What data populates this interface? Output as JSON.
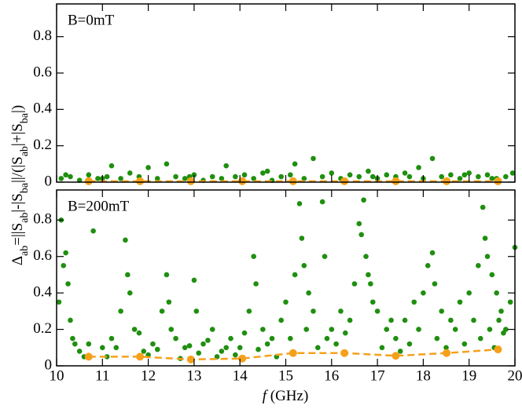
{
  "chart_data": [
    {
      "type": "scatter",
      "annotation": "B=0mT",
      "xlim": [
        10,
        20
      ],
      "xticks": [
        10,
        11,
        12,
        13,
        14,
        15,
        16,
        17,
        18,
        19,
        20
      ],
      "xtick_labels": false,
      "ylim": [
        0,
        0.98
      ],
      "yticks": [
        0,
        0.2,
        0.4,
        0.6,
        0.8
      ],
      "series": [
        {
          "color": "#1f8f0f",
          "x": [
            10.1,
            10.3,
            10.5,
            10.7,
            10.9,
            11.1,
            11.2,
            11.4,
            11.6,
            11.8,
            12.0,
            12.2,
            12.4,
            12.6,
            12.8,
            13.0,
            13.2,
            13.4,
            13.6,
            13.7,
            13.9,
            14.1,
            14.3,
            14.5,
            14.7,
            14.9,
            15.1,
            15.2,
            15.4,
            15.6,
            15.8,
            16.0,
            16.2,
            16.4,
            16.6,
            16.8,
            17.0,
            17.2,
            17.4,
            17.6,
            17.9,
            18.0,
            18.2,
            18.4,
            18.6,
            18.8,
            19.0,
            19.2,
            19.4,
            19.6,
            19.8,
            19.95,
            10.2,
            11.0,
            12.9,
            14.6,
            16.9,
            18.9,
            19.5,
            17.7
          ],
          "values": [
            0.02,
            0.03,
            0.01,
            0.04,
            0.02,
            0.03,
            0.09,
            0.02,
            0.05,
            0.03,
            0.08,
            0.02,
            0.1,
            0.03,
            0.02,
            0.04,
            0.01,
            0.03,
            0.02,
            0.09,
            0.03,
            0.04,
            0.02,
            0.05,
            0.01,
            0.03,
            0.04,
            0.1,
            0.02,
            0.13,
            0.03,
            0.05,
            0.02,
            0.04,
            0.03,
            0.06,
            0.02,
            0.04,
            0.03,
            0.05,
            0.08,
            0.02,
            0.13,
            0.03,
            0.04,
            0.02,
            0.05,
            0.03,
            0.04,
            0.02,
            0.03,
            0.05,
            0.04,
            0.02,
            0.03,
            0.06,
            0.03,
            0.04,
            0.02,
            0.03
          ]
        },
        {
          "color": "#f5a01a",
          "line": "dashed",
          "x": [
            10.7,
            11.82,
            12.93,
            14.05,
            15.16,
            16.28,
            17.4,
            18.51,
            19.63
          ],
          "values": [
            0.005,
            0.005,
            0.005,
            0.005,
            0.005,
            0.005,
            0.005,
            0.005,
            0.005
          ]
        }
      ]
    },
    {
      "type": "scatter",
      "annotation": "B=200mT",
      "xlabel_var": "f",
      "xlabel_unit": "(GHz)",
      "ylabel": [
        {
          "text": "Δ",
          "sub": false
        },
        {
          "text": "ab",
          "sub": true
        },
        {
          "text": "=||S",
          "sub": false
        },
        {
          "text": "ab",
          "sub": true
        },
        {
          "text": "|-|S",
          "sub": false
        },
        {
          "text": "ba",
          "sub": true
        },
        {
          "text": "||/(|S",
          "sub": false
        },
        {
          "text": "ab",
          "sub": true
        },
        {
          "text": "|+|S",
          "sub": false
        },
        {
          "text": "ba",
          "sub": true
        },
        {
          "text": "|)",
          "sub": false
        }
      ],
      "xlim": [
        10,
        20
      ],
      "xticks": [
        10,
        11,
        12,
        13,
        14,
        15,
        16,
        17,
        18,
        19,
        20
      ],
      "xtick_labels": true,
      "ylim": [
        0,
        0.965
      ],
      "yticks": [
        0,
        0.2,
        0.4,
        0.6,
        0.8
      ],
      "series": [
        {
          "color": "#1f8f0f",
          "x": [
            10.05,
            10.1,
            10.15,
            10.2,
            10.25,
            10.3,
            10.4,
            10.5,
            10.6,
            10.8,
            11.0,
            11.2,
            11.4,
            11.5,
            11.55,
            11.6,
            11.7,
            11.9,
            12.1,
            12.3,
            12.4,
            12.45,
            12.6,
            12.8,
            13.0,
            13.05,
            13.2,
            13.4,
            13.6,
            13.8,
            14.0,
            14.2,
            14.3,
            14.35,
            14.5,
            14.7,
            14.9,
            15.0,
            15.2,
            15.3,
            15.35,
            15.4,
            15.5,
            15.6,
            15.8,
            15.85,
            16.0,
            16.2,
            16.4,
            16.5,
            16.6,
            16.65,
            16.7,
            16.75,
            16.8,
            16.85,
            16.9,
            17.0,
            17.2,
            17.4,
            17.6,
            17.8,
            18.0,
            18.1,
            18.2,
            18.25,
            18.4,
            18.6,
            18.8,
            19.0,
            19.2,
            19.3,
            19.35,
            19.4,
            19.5,
            19.6,
            19.7,
            19.8,
            19.9,
            20.0,
            10.35,
            10.7,
            11.1,
            11.3,
            11.8,
            12.0,
            12.2,
            12.5,
            12.7,
            12.9,
            13.1,
            13.3,
            13.5,
            13.7,
            13.9,
            14.1,
            14.4,
            14.6,
            14.8,
            15.1,
            15.45,
            15.7,
            15.9,
            16.1,
            16.3,
            17.1,
            17.3,
            17.5,
            17.7,
            17.9,
            18.3,
            18.5,
            18.7,
            18.9,
            19.1,
            19.25,
            19.45,
            19.55,
            19.65,
            19.75
          ],
          "values": [
            0.35,
            0.8,
            0.55,
            0.62,
            0.45,
            0.25,
            0.12,
            0.08,
            0.05,
            0.74,
            0.1,
            0.15,
            0.3,
            0.69,
            0.5,
            0.4,
            0.2,
            0.08,
            0.12,
            0.3,
            0.5,
            0.35,
            0.15,
            0.1,
            0.47,
            0.3,
            0.12,
            0.2,
            0.08,
            0.15,
            0.1,
            0.3,
            0.6,
            0.45,
            0.2,
            0.15,
            0.25,
            0.35,
            0.5,
            0.89,
            0.7,
            0.55,
            0.4,
            0.3,
            0.9,
            0.6,
            0.2,
            0.3,
            0.25,
            0.45,
            0.78,
            0.72,
            0.91,
            0.6,
            0.5,
            0.45,
            0.35,
            0.3,
            0.2,
            0.15,
            0.25,
            0.35,
            0.4,
            0.55,
            0.62,
            0.45,
            0.3,
            0.25,
            0.35,
            0.4,
            0.55,
            0.87,
            0.7,
            0.6,
            0.5,
            0.4,
            0.3,
            0.2,
            0.35,
            0.65,
            0.15,
            0.12,
            0.05,
            0.1,
            0.18,
            0.06,
            0.09,
            0.2,
            0.04,
            0.11,
            0.07,
            0.14,
            0.05,
            0.1,
            0.06,
            0.18,
            0.09,
            0.12,
            0.05,
            0.15,
            0.2,
            0.1,
            0.15,
            0.12,
            0.18,
            0.1,
            0.25,
            0.08,
            0.12,
            0.2,
            0.15,
            0.1,
            0.2,
            0.12,
            0.25,
            0.15,
            0.2,
            0.1,
            0.25,
            0.18
          ]
        },
        {
          "color": "#f5a01a",
          "line": "dashed",
          "x": [
            10.7,
            11.82,
            12.93,
            14.05,
            15.16,
            16.28,
            17.4,
            18.51,
            19.63
          ],
          "values": [
            0.05,
            0.05,
            0.035,
            0.04,
            0.07,
            0.07,
            0.055,
            0.07,
            0.09
          ]
        }
      ]
    }
  ]
}
